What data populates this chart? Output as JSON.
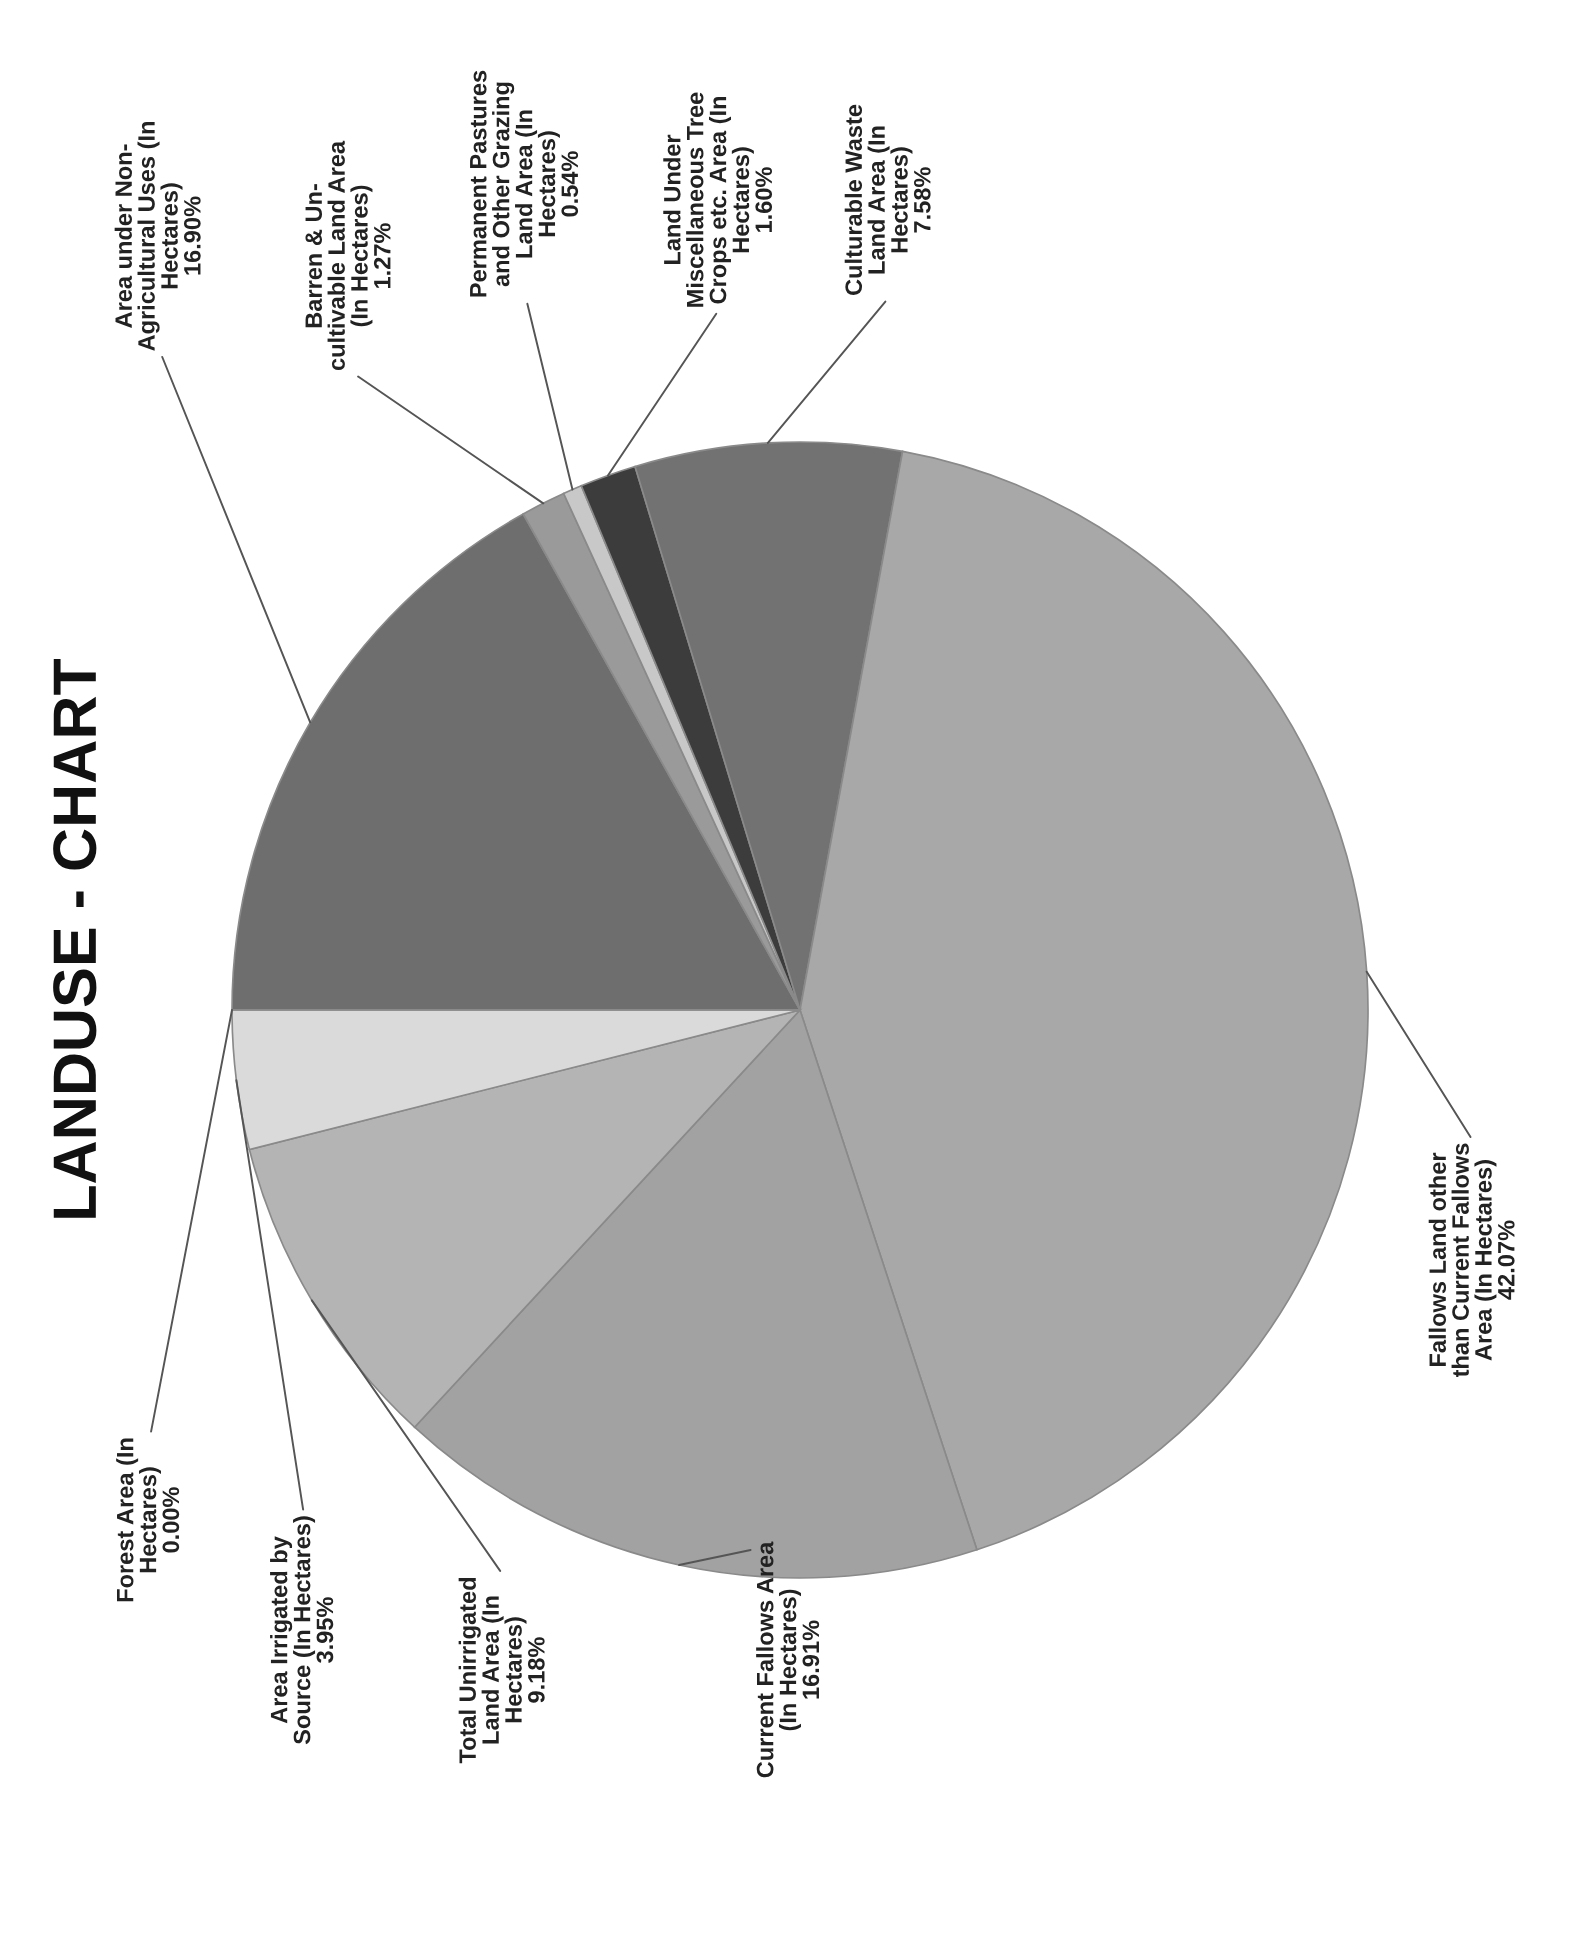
{
  "chart_data": {
    "type": "pie",
    "title": "LANDUSE - CHART",
    "categories": [
      "Area under Non-Agricultural Uses (In Hectares)",
      "Barren & Un-cultivable Land Area (In Hectares)",
      "Permanent Pastures and Other Grazing Land Area (In Hectares)",
      "Land Under Miscellaneous Tree Crops etc. Area (In Hectares)",
      "Culturable Waste Land Area (In Hectares)",
      "Fallows Land other than Current Fallows Area (In Hectares)",
      "Current Fallows Area (In Hectares)",
      "Total Unirrigated Land Area (In Hectares)",
      "Area Irrigated by Source (In Hectares)",
      "Forest Area (In Hectares)"
    ],
    "values": [
      16.9,
      1.27,
      0.54,
      1.6,
      7.58,
      42.07,
      16.91,
      9.18,
      3.95,
      0.0
    ],
    "value_labels": [
      "16.90%",
      "1.27%",
      "0.54%",
      "1.60%",
      "7.58%",
      "42.07%",
      "16.91%",
      "9.18%",
      "3.95%",
      "0.00%"
    ],
    "colors": [
      "#6e6e6e",
      "#9a9a9a",
      "#c8c8c8",
      "#3c3c3c",
      "#727272",
      "#a8a8a8",
      "#a2a2a2",
      "#b4b4b4",
      "#dadada",
      "#e2e2e2"
    ],
    "legend": false
  }
}
